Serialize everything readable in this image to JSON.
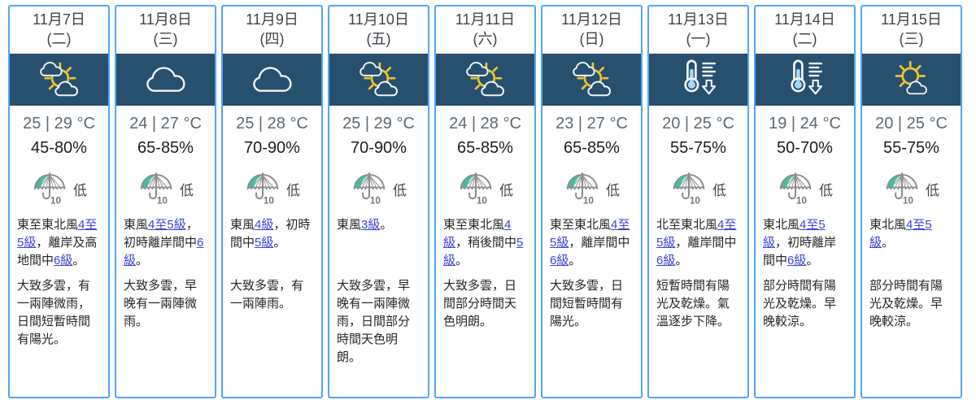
{
  "widget": {
    "type": "9-day-weather-forecast",
    "background": "#ffffff"
  },
  "colors": {
    "column_border": "#51a7f4",
    "icon_band": "#27506f",
    "date_text": "#3f444b",
    "temp_text": "#5d6a74",
    "humidity_text": "#1e1e1e",
    "body_text": "#262626",
    "link": "#3a46d4",
    "sun_yellow": "#edc62f",
    "cloud_white": "#eef3f6",
    "thermo_mercury": "#a8d9f2",
    "umbrella_gray": "#8d8d8d",
    "umbrella_teal": "#38c3a2"
  },
  "psr": {
    "icon": "umbrella-psr-10-icon",
    "value": "10"
  },
  "days": [
    {
      "date": "11月7日",
      "weekday": "(二)",
      "icon": "sun-between-clouds",
      "temp": "25 | 29 °C",
      "humidity": "45-80%",
      "psr": "低",
      "wind": [
        {
          "t": "東至東北風"
        },
        {
          "t": "4至5級",
          "link": true
        },
        {
          "t": "，離岸及高地間中"
        },
        {
          "t": "6級",
          "link": true
        },
        {
          "t": "。"
        }
      ],
      "weather": "大致多雲，有一兩陣微雨，日間短暫時間有陽光。"
    },
    {
      "date": "11月8日",
      "weekday": "(三)",
      "icon": "cloudy",
      "temp": "24 | 27 °C",
      "humidity": "65-85%",
      "psr": "低",
      "wind": [
        {
          "t": "東風"
        },
        {
          "t": "4至5級",
          "link": true
        },
        {
          "t": "，初時離岸間中"
        },
        {
          "t": "6級",
          "link": true
        },
        {
          "t": "。"
        }
      ],
      "weather": "大致多雲，早晚有一兩陣微雨。"
    },
    {
      "date": "11月9日",
      "weekday": "(四)",
      "icon": "cloudy",
      "temp": "25 | 28 °C",
      "humidity": "70-90%",
      "psr": "低",
      "wind": [
        {
          "t": "東風"
        },
        {
          "t": "4級",
          "link": true
        },
        {
          "t": "，初時間中"
        },
        {
          "t": "5級",
          "link": true
        },
        {
          "t": "。"
        }
      ],
      "weather": "大致多雲，有一兩陣雨。"
    },
    {
      "date": "11月10日",
      "weekday": "(五)",
      "icon": "sun-between-clouds",
      "temp": "25 | 29 °C",
      "humidity": "70-90%",
      "psr": "低",
      "wind": [
        {
          "t": "東風"
        },
        {
          "t": "3級",
          "link": true
        },
        {
          "t": "。"
        }
      ],
      "weather": "大致多雲，早晚有一兩陣微雨，日間部分時間天色明朗。"
    },
    {
      "date": "11月11日",
      "weekday": "(六)",
      "icon": "sun-between-clouds",
      "temp": "24 | 28 °C",
      "humidity": "65-85%",
      "psr": "低",
      "wind": [
        {
          "t": "東至東北風"
        },
        {
          "t": "4級",
          "link": true
        },
        {
          "t": "，稍後間中"
        },
        {
          "t": "5級",
          "link": true
        },
        {
          "t": "。"
        }
      ],
      "weather": "大致多雲，日間部分時間天色明朗。"
    },
    {
      "date": "11月12日",
      "weekday": "(日)",
      "icon": "sun-between-clouds",
      "temp": "23 | 27 °C",
      "humidity": "65-85%",
      "psr": "低",
      "wind": [
        {
          "t": "東至東北風"
        },
        {
          "t": "4至5級",
          "link": true
        },
        {
          "t": "，離岸間中"
        },
        {
          "t": "6級",
          "link": true
        },
        {
          "t": "。"
        }
      ],
      "weather": "大致多雲，日間短暫時間有陽光。"
    },
    {
      "date": "11月13日",
      "weekday": "(一)",
      "icon": "temp-drop",
      "temp": "20 | 25 °C",
      "humidity": "55-75%",
      "psr": "低",
      "wind": [
        {
          "t": "北至東北風"
        },
        {
          "t": "4至5級",
          "link": true
        },
        {
          "t": "，離岸間中"
        },
        {
          "t": "6級",
          "link": true
        },
        {
          "t": "。"
        }
      ],
      "weather": "短暫時間有陽光及乾燥。氣溫逐步下降。"
    },
    {
      "date": "11月14日",
      "weekday": "(二)",
      "icon": "temp-drop",
      "temp": "19 | 24 °C",
      "humidity": "50-70%",
      "psr": "低",
      "wind": [
        {
          "t": "東北風"
        },
        {
          "t": "4至5級",
          "link": true
        },
        {
          "t": "，初時離岸間中"
        },
        {
          "t": "6級",
          "link": true
        },
        {
          "t": "。"
        }
      ],
      "weather": "部分時間有陽光及乾燥。早晚較涼。"
    },
    {
      "date": "11月15日",
      "weekday": "(三)",
      "icon": "sunny-periods",
      "temp": "20 | 25 °C",
      "humidity": "55-75%",
      "psr": "低",
      "wind": [
        {
          "t": "東北風"
        },
        {
          "t": "4至5級",
          "link": true
        },
        {
          "t": "。"
        }
      ],
      "weather": "部分時間有陽光及乾燥。早晚較涼。"
    }
  ]
}
